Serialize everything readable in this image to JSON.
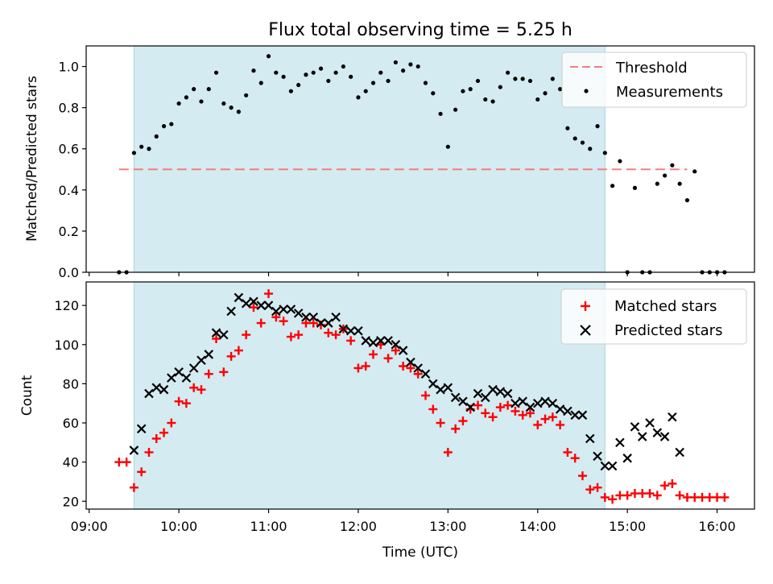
{
  "chart_data": [
    {
      "type": "scatter",
      "title": "Flux total observing time = 5.25 h",
      "xlabel": "",
      "ylabel": "Matched/Predicted stars",
      "ylim": [
        0,
        1.1
      ],
      "yticks": [
        "0.0",
        "0.2",
        "0.4",
        "0.6",
        "0.8",
        "1.0"
      ],
      "legend_position": "top-right",
      "shaded_interval": [
        "09:30",
        "14:45"
      ],
      "threshold": {
        "name": "Threshold",
        "value": 0.5,
        "x_range": [
          "09:20",
          "15:40"
        ],
        "color": "#f08080"
      },
      "series": [
        {
          "name": "Measurements",
          "color": "#000000",
          "points": [
            [
              "09:20",
              0.0
            ],
            [
              "09:25",
              0.0
            ],
            [
              "09:30",
              0.58
            ],
            [
              "09:35",
              0.61
            ],
            [
              "09:40",
              0.6
            ],
            [
              "09:45",
              0.66
            ],
            [
              "09:50",
              0.71
            ],
            [
              "09:55",
              0.72
            ],
            [
              "10:00",
              0.82
            ],
            [
              "10:05",
              0.85
            ],
            [
              "10:10",
              0.89
            ],
            [
              "10:15",
              0.83
            ],
            [
              "10:20",
              0.89
            ],
            [
              "10:25",
              0.97
            ],
            [
              "10:30",
              0.82
            ],
            [
              "10:35",
              0.8
            ],
            [
              "10:40",
              0.78
            ],
            [
              "10:45",
              0.86
            ],
            [
              "10:50",
              0.98
            ],
            [
              "10:55",
              0.92
            ],
            [
              "11:00",
              1.05
            ],
            [
              "11:05",
              0.97
            ],
            [
              "11:10",
              0.95
            ],
            [
              "11:15",
              0.88
            ],
            [
              "11:20",
              0.91
            ],
            [
              "11:25",
              0.96
            ],
            [
              "11:30",
              0.97
            ],
            [
              "11:35",
              0.99
            ],
            [
              "11:40",
              0.93
            ],
            [
              "11:45",
              0.97
            ],
            [
              "11:50",
              1.0
            ],
            [
              "11:55",
              0.95
            ],
            [
              "12:00",
              0.85
            ],
            [
              "12:05",
              0.88
            ],
            [
              "12:10",
              0.92
            ],
            [
              "12:15",
              0.97
            ],
            [
              "12:20",
              0.93
            ],
            [
              "12:25",
              1.02
            ],
            [
              "12:30",
              0.98
            ],
            [
              "12:35",
              1.01
            ],
            [
              "12:40",
              1.0
            ],
            [
              "12:45",
              0.92
            ],
            [
              "12:50",
              0.87
            ],
            [
              "12:55",
              0.77
            ],
            [
              "13:00",
              0.61
            ],
            [
              "13:05",
              0.79
            ],
            [
              "13:10",
              0.88
            ],
            [
              "13:15",
              0.89
            ],
            [
              "13:20",
              0.93
            ],
            [
              "13:25",
              0.84
            ],
            [
              "13:30",
              0.83
            ],
            [
              "13:35",
              0.9
            ],
            [
              "13:40",
              0.97
            ],
            [
              "13:45",
              0.94
            ],
            [
              "13:50",
              0.94
            ],
            [
              "13:55",
              0.93
            ],
            [
              "14:00",
              0.84
            ],
            [
              "14:05",
              0.87
            ],
            [
              "14:10",
              0.94
            ],
            [
              "14:15",
              0.89
            ],
            [
              "14:20",
              0.7
            ],
            [
              "14:25",
              0.65
            ],
            [
              "14:30",
              0.63
            ],
            [
              "14:35",
              0.6
            ],
            [
              "14:40",
              0.71
            ],
            [
              "14:45",
              0.58
            ],
            [
              "14:50",
              0.42
            ],
            [
              "14:55",
              0.54
            ],
            [
              "15:00",
              0.0
            ],
            [
              "15:05",
              0.41
            ],
            [
              "15:10",
              0.0
            ],
            [
              "15:15",
              0.0
            ],
            [
              "15:20",
              0.43
            ],
            [
              "15:25",
              0.47
            ],
            [
              "15:30",
              0.52
            ],
            [
              "15:35",
              0.43
            ],
            [
              "15:40",
              0.35
            ],
            [
              "15:45",
              0.49
            ],
            [
              "15:50",
              0.0
            ],
            [
              "15:55",
              0.0
            ],
            [
              "16:00",
              0.0
            ],
            [
              "16:05",
              0.0
            ]
          ]
        }
      ]
    },
    {
      "type": "scatter",
      "title": "",
      "xlabel": "Time (UTC)",
      "ylabel": "Count",
      "ylim": [
        16,
        132
      ],
      "yticks": [
        "20",
        "40",
        "60",
        "80",
        "100",
        "120"
      ],
      "xticks": [
        "09:00",
        "10:00",
        "11:00",
        "12:00",
        "13:00",
        "14:00",
        "15:00",
        "16:00"
      ],
      "xlim": [
        "08:58",
        "16:25"
      ],
      "legend_position": "top-right",
      "shaded_interval": [
        "09:30",
        "14:45"
      ],
      "series": [
        {
          "name": "Matched stars",
          "color": "#ff0000",
          "marker": "+",
          "points": [
            [
              "09:20",
              40
            ],
            [
              "09:25",
              40
            ],
            [
              "09:30",
              27
            ],
            [
              "09:35",
              35
            ],
            [
              "09:40",
              45
            ],
            [
              "09:45",
              52
            ],
            [
              "09:50",
              55
            ],
            [
              "09:55",
              60
            ],
            [
              "10:00",
              71
            ],
            [
              "10:05",
              70
            ],
            [
              "10:10",
              78
            ],
            [
              "10:15",
              77
            ],
            [
              "10:20",
              85
            ],
            [
              "10:25",
              103
            ],
            [
              "10:30",
              86
            ],
            [
              "10:35",
              94
            ],
            [
              "10:40",
              97
            ],
            [
              "10:45",
              105
            ],
            [
              "10:50",
              119
            ],
            [
              "10:55",
              111
            ],
            [
              "11:00",
              126
            ],
            [
              "11:05",
              114
            ],
            [
              "11:10",
              112
            ],
            [
              "11:15",
              104
            ],
            [
              "11:20",
              105
            ],
            [
              "11:25",
              111
            ],
            [
              "11:30",
              111
            ],
            [
              "11:35",
              110
            ],
            [
              "11:40",
              106
            ],
            [
              "11:45",
              105
            ],
            [
              "11:50",
              108
            ],
            [
              "11:55",
              102
            ],
            [
              "12:00",
              88
            ],
            [
              "12:05",
              89
            ],
            [
              "12:10",
              95
            ],
            [
              "12:15",
              100
            ],
            [
              "12:20",
              93
            ],
            [
              "12:25",
              97
            ],
            [
              "12:30",
              89
            ],
            [
              "12:35",
              88
            ],
            [
              "12:40",
              85
            ],
            [
              "12:45",
              74
            ],
            [
              "12:50",
              67
            ],
            [
              "12:55",
              60
            ],
            [
              "13:00",
              45
            ],
            [
              "13:05",
              57
            ],
            [
              "13:10",
              61
            ],
            [
              "13:15",
              67
            ],
            [
              "13:20",
              69
            ],
            [
              "13:25",
              65
            ],
            [
              "13:30",
              63
            ],
            [
              "13:35",
              68
            ],
            [
              "13:40",
              69
            ],
            [
              "13:45",
              66
            ],
            [
              "13:50",
              64
            ],
            [
              "13:55",
              65
            ],
            [
              "14:00",
              59
            ],
            [
              "14:05",
              62
            ],
            [
              "14:10",
              63
            ],
            [
              "14:15",
              59
            ],
            [
              "14:20",
              45
            ],
            [
              "14:25",
              42
            ],
            [
              "14:30",
              33
            ],
            [
              "14:35",
              26
            ],
            [
              "14:40",
              27
            ],
            [
              "14:45",
              22
            ],
            [
              "14:50",
              21
            ],
            [
              "14:55",
              23
            ],
            [
              "15:00",
              23
            ],
            [
              "15:05",
              24
            ],
            [
              "15:10",
              24
            ],
            [
              "15:15",
              24
            ],
            [
              "15:20",
              23
            ],
            [
              "15:25",
              28
            ],
            [
              "15:30",
              29
            ],
            [
              "15:35",
              23
            ],
            [
              "15:40",
              22
            ],
            [
              "15:45",
              22
            ],
            [
              "15:50",
              22
            ],
            [
              "15:55",
              22
            ],
            [
              "16:00",
              22
            ],
            [
              "16:05",
              22
            ]
          ]
        },
        {
          "name": "Predicted stars",
          "color": "#000000",
          "marker": "x",
          "points": [
            [
              "09:30",
              46
            ],
            [
              "09:35",
              57
            ],
            [
              "09:40",
              75
            ],
            [
              "09:45",
              78
            ],
            [
              "09:50",
              77
            ],
            [
              "09:55",
              83
            ],
            [
              "10:00",
              86
            ],
            [
              "10:05",
              83
            ],
            [
              "10:10",
              88
            ],
            [
              "10:15",
              92
            ],
            [
              "10:20",
              95
            ],
            [
              "10:25",
              106
            ],
            [
              "10:30",
              105
            ],
            [
              "10:35",
              117
            ],
            [
              "10:40",
              124
            ],
            [
              "10:45",
              121
            ],
            [
              "10:50",
              122
            ],
            [
              "10:55",
              120
            ],
            [
              "11:00",
              120
            ],
            [
              "11:05",
              117
            ],
            [
              "11:10",
              118
            ],
            [
              "11:15",
              118
            ],
            [
              "11:20",
              116
            ],
            [
              "11:25",
              114
            ],
            [
              "11:30",
              114
            ],
            [
              "11:35",
              111
            ],
            [
              "11:40",
              111
            ],
            [
              "11:45",
              114
            ],
            [
              "11:50",
              108
            ],
            [
              "11:55",
              107
            ],
            [
              "12:00",
              107
            ],
            [
              "12:05",
              102
            ],
            [
              "12:10",
              101
            ],
            [
              "12:15",
              102
            ],
            [
              "12:20",
              102
            ],
            [
              "12:25",
              100
            ],
            [
              "12:30",
              97
            ],
            [
              "12:35",
              91
            ],
            [
              "12:40",
              88
            ],
            [
              "12:45",
              85
            ],
            [
              "12:50",
              80
            ],
            [
              "12:55",
              77
            ],
            [
              "13:00",
              78
            ],
            [
              "13:05",
              73
            ],
            [
              "13:10",
              71
            ],
            [
              "13:15",
              68
            ],
            [
              "13:20",
              75
            ],
            [
              "13:25",
              73
            ],
            [
              "13:30",
              77
            ],
            [
              "13:35",
              76
            ],
            [
              "13:40",
              75
            ],
            [
              "13:45",
              70
            ],
            [
              "13:50",
              71
            ],
            [
              "13:55",
              68
            ],
            [
              "14:00",
              70
            ],
            [
              "14:05",
              71
            ],
            [
              "14:10",
              70
            ],
            [
              "14:15",
              67
            ],
            [
              "14:20",
              66
            ],
            [
              "14:25",
              64
            ],
            [
              "14:30",
              64
            ],
            [
              "14:35",
              52
            ],
            [
              "14:40",
              43
            ],
            [
              "14:45",
              38
            ],
            [
              "14:50",
              38
            ],
            [
              "14:55",
              50
            ],
            [
              "15:00",
              42
            ],
            [
              "15:05",
              58
            ],
            [
              "15:10",
              53
            ],
            [
              "15:15",
              60
            ],
            [
              "15:20",
              55
            ],
            [
              "15:25",
              53
            ],
            [
              "15:30",
              63
            ],
            [
              "15:35",
              45
            ]
          ]
        }
      ]
    }
  ]
}
